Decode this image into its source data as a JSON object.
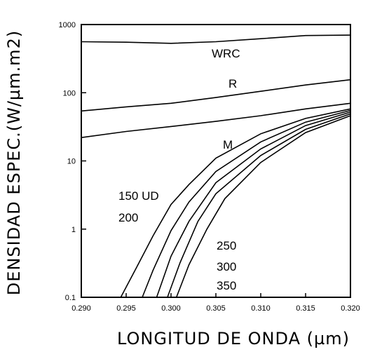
{
  "chart_data": {
    "type": "line",
    "xlabel": "LONGITUD DE ONDA (µm)",
    "ylabel": "DENSIDAD ESPEC.(W/µm.m2)",
    "xlim": [
      0.29,
      0.32
    ],
    "ylim": [
      0.1,
      1000
    ],
    "yscale": "log",
    "grid": false,
    "x_ticks": [
      "0.290",
      "0.295",
      "0.300",
      "0.305",
      "0.310",
      "0.315",
      "0.320"
    ],
    "y_ticks": [
      "0.1",
      "1",
      "10",
      "100",
      "1000"
    ],
    "annotations": [
      "WRC",
      "R",
      "M",
      "150 UD",
      "200",
      "250",
      "300",
      "350"
    ],
    "series": [
      {
        "name": "WRC",
        "x": [
          0.29,
          0.295,
          0.3,
          0.305,
          0.31,
          0.315,
          0.32
        ],
        "y": [
          560,
          550,
          530,
          560,
          620,
          690,
          700
        ]
      },
      {
        "name": "R",
        "x": [
          0.29,
          0.295,
          0.3,
          0.305,
          0.31,
          0.315,
          0.32
        ],
        "y": [
          54,
          62,
          70,
          85,
          105,
          130,
          155
        ]
      },
      {
        "name": "M",
        "x": [
          0.29,
          0.295,
          0.3,
          0.305,
          0.31,
          0.315,
          0.32
        ],
        "y": [
          22,
          27,
          32,
          38,
          46,
          58,
          70
        ]
      },
      {
        "name": "150 UD",
        "x": [
          0.2944,
          0.296,
          0.298,
          0.3,
          0.302,
          0.305,
          0.31,
          0.315,
          0.32
        ],
        "y": [
          0.1,
          0.25,
          0.8,
          2.3,
          4.5,
          11,
          25,
          42,
          58
        ]
      },
      {
        "name": "200",
        "x": [
          0.2968,
          0.298,
          0.3,
          0.302,
          0.305,
          0.31,
          0.315,
          0.32
        ],
        "y": [
          0.1,
          0.25,
          0.95,
          2.5,
          7,
          19,
          37,
          55
        ]
      },
      {
        "name": "250",
        "x": [
          0.2984,
          0.3,
          0.302,
          0.305,
          0.31,
          0.315,
          0.32
        ],
        "y": [
          0.1,
          0.4,
          1.3,
          4.8,
          15,
          33,
          52
        ]
      },
      {
        "name": "300",
        "x": [
          0.2996,
          0.301,
          0.303,
          0.305,
          0.31,
          0.315,
          0.32
        ],
        "y": [
          0.1,
          0.32,
          1.3,
          3.3,
          12,
          29,
          49
        ]
      },
      {
        "name": "350",
        "x": [
          0.3006,
          0.302,
          0.304,
          0.306,
          0.31,
          0.315,
          0.32
        ],
        "y": [
          0.1,
          0.3,
          1.0,
          2.8,
          9.5,
          26,
          46
        ]
      }
    ]
  }
}
